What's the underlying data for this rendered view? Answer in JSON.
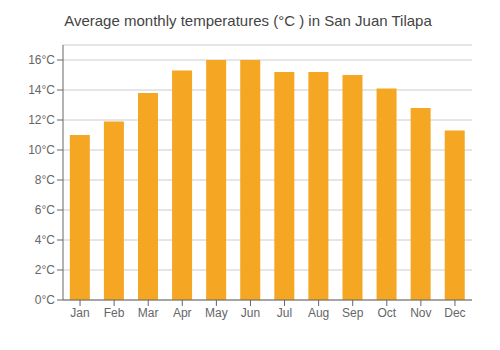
{
  "chart_data": {
    "type": "bar",
    "title": "Average monthly temperatures (°C ) in San Juan Tilapa",
    "categories": [
      "Jan",
      "Feb",
      "Mar",
      "Apr",
      "May",
      "Jun",
      "Jul",
      "Aug",
      "Sep",
      "Oct",
      "Nov",
      "Dec"
    ],
    "values": [
      11.0,
      11.9,
      13.8,
      15.3,
      16.0,
      16.0,
      15.2,
      15.2,
      15.0,
      14.1,
      12.8,
      11.3
    ],
    "color": "#F5A623",
    "ylim": [
      0,
      17
    ],
    "yticks": [
      {
        "value": 0,
        "label": "0°C"
      },
      {
        "value": 2,
        "label": "2°C"
      },
      {
        "value": 4,
        "label": "4°C"
      },
      {
        "value": 6,
        "label": "6°C"
      },
      {
        "value": 8,
        "label": "8°C"
      },
      {
        "value": 10,
        "label": "10°C"
      },
      {
        "value": 12,
        "label": "12°C"
      },
      {
        "value": 14,
        "label": "14°C"
      },
      {
        "value": 16,
        "label": "16°C"
      }
    ],
    "grid": true
  }
}
